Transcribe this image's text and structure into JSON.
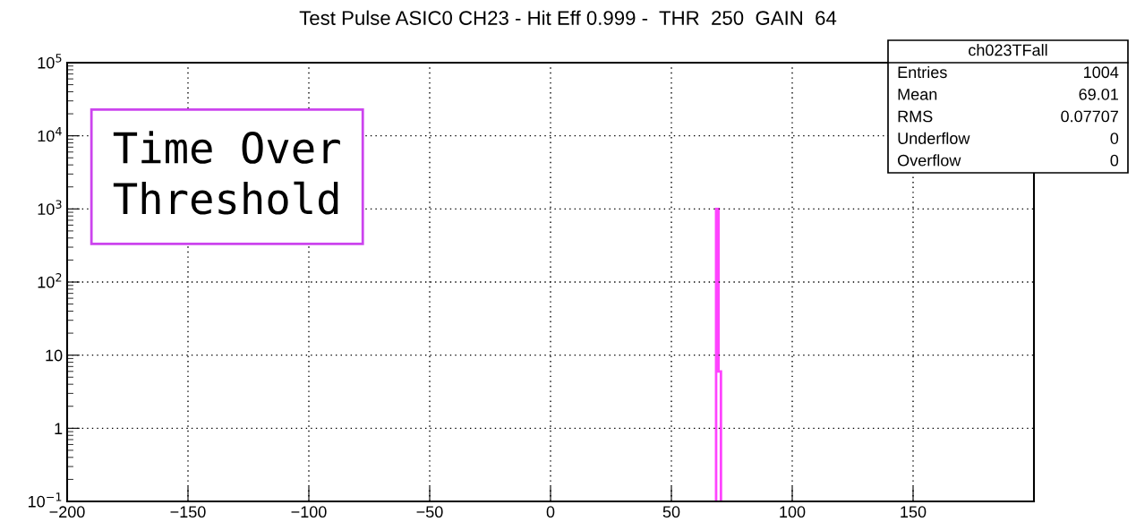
{
  "chart_data": {
    "type": "histogram",
    "title": "Test Pulse ASIC0 CH23 - Hit Eff 0.999 -  THR  250  GAIN  64",
    "bins": [
      68.5,
      69.5,
      70.5
    ],
    "values": [
      998,
      6
    ],
    "color": "#ff44ff",
    "log": "y",
    "xlim": [
      -200,
      200
    ],
    "ylim": [
      0.1,
      100000
    ],
    "xticks": [
      {
        "value": -200,
        "label": "−200"
      },
      {
        "value": -150,
        "label": "−150"
      },
      {
        "value": -100,
        "label": "−100"
      },
      {
        "value": -50,
        "label": "−50"
      },
      0,
      50,
      100,
      150
    ],
    "yticks": [
      {
        "value": 0.1,
        "label": "10$^{−1}$"
      },
      1,
      10,
      {
        "value": 100,
        "label": "10$^{2}$"
      },
      {
        "value": 1000,
        "label": "10$^{3}$"
      },
      {
        "value": 10000,
        "label": "10$^{4}$"
      },
      {
        "value": 100000,
        "label": "10$^{5}$"
      }
    ],
    "grid": true,
    "annotations": [
      "Time Over\nThreshold",
      "ch023TFall",
      "Entries",
      "1004",
      "Mean",
      "69.01",
      "RMS",
      "0.07707",
      "Underflow",
      "0",
      "Overflow",
      "0"
    ]
  }
}
